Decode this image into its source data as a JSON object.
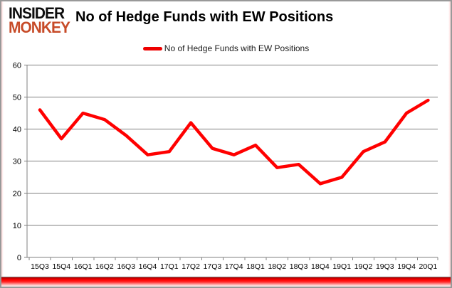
{
  "header": {
    "logo_line1": "INSIDER",
    "logo_line2": "MONKEY",
    "title": "No of Hedge Funds with EW Positions"
  },
  "legend": {
    "label": "No of Hedge Funds with EW Positions"
  },
  "colors": {
    "series_red": "#ff0000",
    "logo_red": "#c74b28",
    "grid_gray": "#808080",
    "bottom_band_red": "#ff0000"
  },
  "chart_data": {
    "type": "line",
    "title": "No of Hedge Funds with EW Positions",
    "series_name": "No of Hedge Funds with EW Positions",
    "categories": [
      "15Q3",
      "15Q4",
      "16Q1",
      "16Q2",
      "16Q3",
      "16Q4",
      "17Q1",
      "17Q2",
      "17Q3",
      "17Q4",
      "18Q1",
      "18Q2",
      "18Q3",
      "18Q4",
      "19Q1",
      "19Q2",
      "19Q3",
      "19Q4",
      "20Q1"
    ],
    "values": [
      46,
      37,
      45,
      43,
      38,
      32,
      33,
      42,
      34,
      32,
      35,
      28,
      29,
      23,
      25,
      33,
      36,
      45,
      49
    ],
    "xlabel": "",
    "ylabel": "",
    "ylim": [
      0,
      60
    ],
    "y_ticks": [
      0,
      10,
      20,
      30,
      40,
      50,
      60
    ],
    "grid": true,
    "legend_position": "top-center",
    "line_color": "#ff0000"
  }
}
